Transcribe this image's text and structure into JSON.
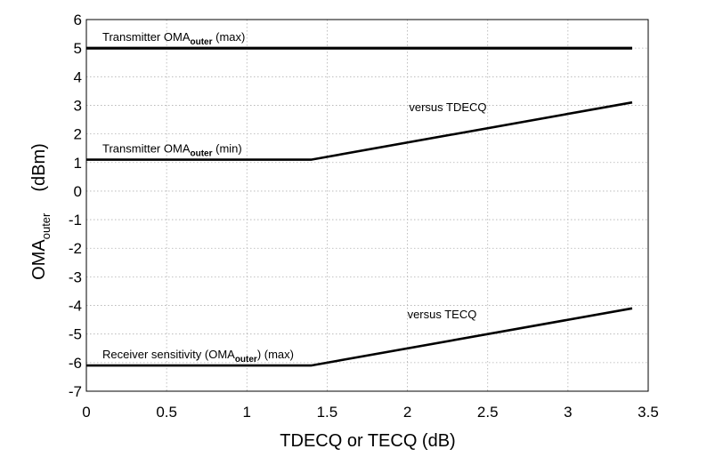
{
  "chart_data": {
    "type": "line",
    "title": "",
    "xlabel": "TDECQ or TECQ (dB)",
    "ylabel": "OMA",
    "ylabel_sub": "outer",
    "ylabel_unit": "(dBm)",
    "xlim": [
      0,
      3.5
    ],
    "ylim": [
      -7,
      6
    ],
    "x_ticks": [
      "0",
      "0.5",
      "1",
      "1.5",
      "2",
      "2.5",
      "3",
      "3.5"
    ],
    "x_tick_values": [
      0,
      0.5,
      1,
      1.5,
      2,
      2.5,
      3,
      3.5
    ],
    "y_ticks": [
      "6",
      "5",
      "4",
      "3",
      "2",
      "1",
      "0",
      "-1",
      "-2",
      "-3",
      "-4",
      "-5",
      "-6",
      "-7"
    ],
    "y_tick_values": [
      6,
      5,
      4,
      3,
      2,
      1,
      0,
      -1,
      -2,
      -3,
      -4,
      -5,
      -6,
      -7
    ],
    "grid": true,
    "series": [
      {
        "name": "Transmitter OMAouter (max)",
        "x": [
          0,
          3.4
        ],
        "y": [
          5,
          5
        ]
      },
      {
        "name": "Transmitter OMAouter (min) versus TDECQ",
        "x": [
          0,
          1.4,
          3.4
        ],
        "y": [
          1.1,
          1.1,
          3.1
        ]
      },
      {
        "name": "Receiver sensitivity (OMAouter) (max) versus TECQ",
        "x": [
          0,
          1.4,
          3.4
        ],
        "y": [
          -6.1,
          -6.1,
          -4.1
        ]
      }
    ],
    "annotations": {
      "tx_max": {
        "pre": "Transmitter OMA",
        "sub": "outer",
        "post": " (max)",
        "at": [
          0.1,
          5.25
        ]
      },
      "tx_min": {
        "pre": "Transmitter OMA",
        "sub": "outer",
        "post": " (min)",
        "at": [
          0.1,
          1.35
        ]
      },
      "rx": {
        "pre": "Receiver sensitivity (OMA",
        "sub": "outer",
        "post": ") (max)",
        "at": [
          0.1,
          -5.85
        ]
      },
      "versus_tdecq": {
        "text": "versus TDECQ",
        "at": [
          2.01,
          2.8
        ]
      },
      "versus_tecq": {
        "text": "versus TECQ",
        "at": [
          2.0,
          -4.45
        ]
      }
    }
  }
}
